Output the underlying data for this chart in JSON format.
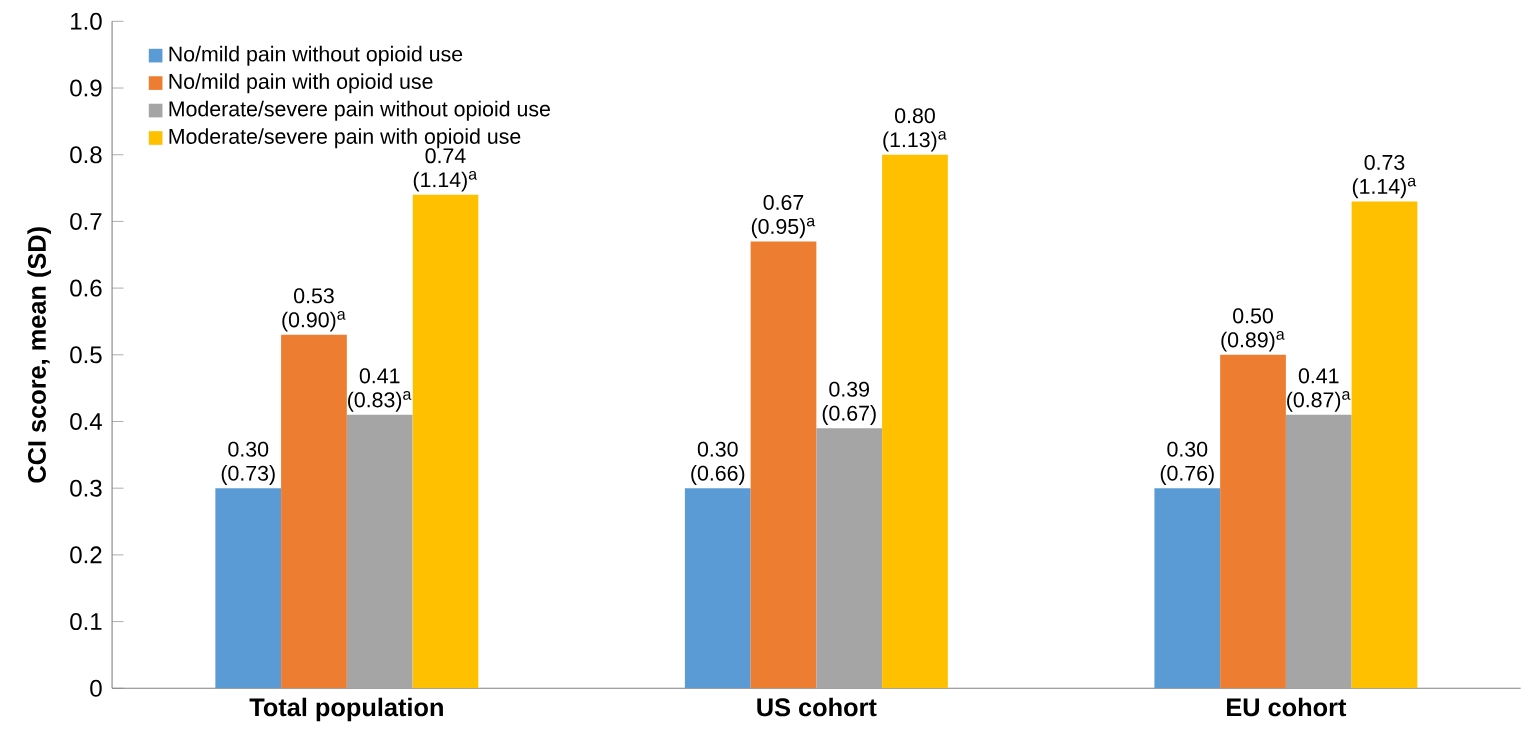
{
  "chart_data": {
    "type": "bar",
    "ylabel": "CCI score, mean (SD)",
    "categories": [
      "Total population",
      "US cohort",
      "EU cohort"
    ],
    "series": [
      {
        "name": "No/mild pain without opioid use",
        "color": "#5b9bd5",
        "values": [
          0.3,
          0.3,
          0.3
        ],
        "value_labels": [
          "0.30 (0.73)",
          "0.30 (0.66)",
          "0.30 (0.76)"
        ]
      },
      {
        "name": "No/mild pain with opioid use",
        "color": "#ed7d31",
        "values": [
          0.53,
          0.67,
          0.5
        ],
        "value_labels": [
          "0.53 (0.90)$^{a}$",
          "0.67 (0.95)$^{a}$",
          "0.50 (0.89)$^{a}$"
        ]
      },
      {
        "name": "Moderate/severe pain without opioid use",
        "color": "#a5a5a5",
        "values": [
          0.41,
          0.39,
          0.41
        ],
        "value_labels": [
          "0.41 (0.83)$^{a}$",
          "0.39 (0.67)",
          "0.41 (0.87)$^{a}$"
        ]
      },
      {
        "name": "Moderate/severe pain with opioid use",
        "color": "#ffc000",
        "values": [
          0.74,
          0.8,
          0.73
        ],
        "value_labels": [
          "0.74 (1.14)$^{a}$",
          "0.80 (1.13)$^{a}$",
          "0.73 (1.14)$^{a}$"
        ]
      }
    ],
    "ylim": [
      0,
      1
    ],
    "yticks": [
      0,
      {
        "value": 0.1,
        "label": "0.1"
      },
      {
        "value": 0.2,
        "label": "0.2"
      },
      {
        "value": 0.3,
        "label": "0.3"
      },
      {
        "value": 0.4,
        "label": "0.4"
      },
      {
        "value": 0.5,
        "label": "0.5"
      },
      {
        "value": 0.6,
        "label": "0.6"
      },
      {
        "value": 0.7,
        "label": "0.7"
      },
      {
        "value": 0.8,
        "label": "0.8"
      },
      {
        "value": 0.9,
        "label": "0.9"
      },
      {
        "value": 1,
        "label": "1.0"
      }
    ],
    "grid": false,
    "legend": "top left"
  }
}
